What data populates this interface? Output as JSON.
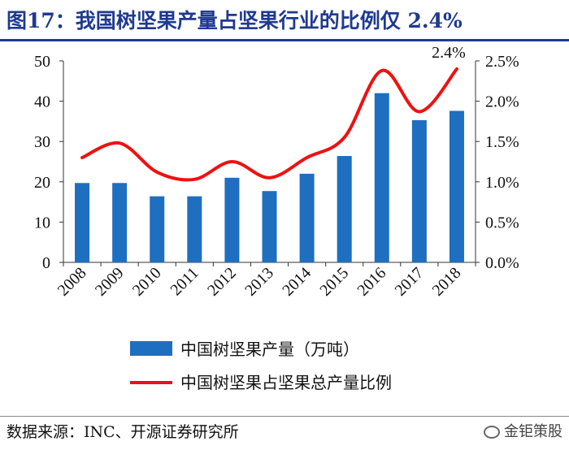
{
  "title": "图17：我国树坚果产量占坚果行业的比例仅 2.4%",
  "source": "数据来源：INC、开源证券研究所",
  "brand": "金钜策股",
  "chart_data": {
    "type": "bar",
    "categories": [
      "2008",
      "2009",
      "2010",
      "2011",
      "2012",
      "2013",
      "2014",
      "2015",
      "2016",
      "2017",
      "2018"
    ],
    "series": [
      {
        "name": "中国树坚果产量（万吨）",
        "type": "bar",
        "axis": "left",
        "color": "#1e6fc0",
        "values": [
          19.7,
          19.7,
          16.4,
          16.4,
          21.0,
          17.7,
          22.0,
          26.4,
          42.0,
          35.3,
          37.6
        ]
      },
      {
        "name": "中国树坚果占坚果总产量比例",
        "type": "line",
        "axis": "right",
        "color": "#ee1111",
        "values": [
          0.013,
          0.0148,
          0.0112,
          0.0103,
          0.0125,
          0.0105,
          0.013,
          0.0155,
          0.0238,
          0.0187,
          0.024
        ]
      }
    ],
    "y_left": {
      "ylim": [
        0,
        50
      ],
      "ticks": [
        "0",
        "10",
        "20",
        "30",
        "40",
        "50"
      ]
    },
    "y_right": {
      "ylim": [
        0,
        0.025
      ],
      "ticks": [
        "0.0%",
        "0.5%",
        "1.0%",
        "1.5%",
        "2.0%",
        "2.5%"
      ]
    },
    "annotations": [
      {
        "text": "2.4%",
        "category": "2018",
        "series": 1
      }
    ],
    "legend_position": "bottom",
    "grid": false
  }
}
